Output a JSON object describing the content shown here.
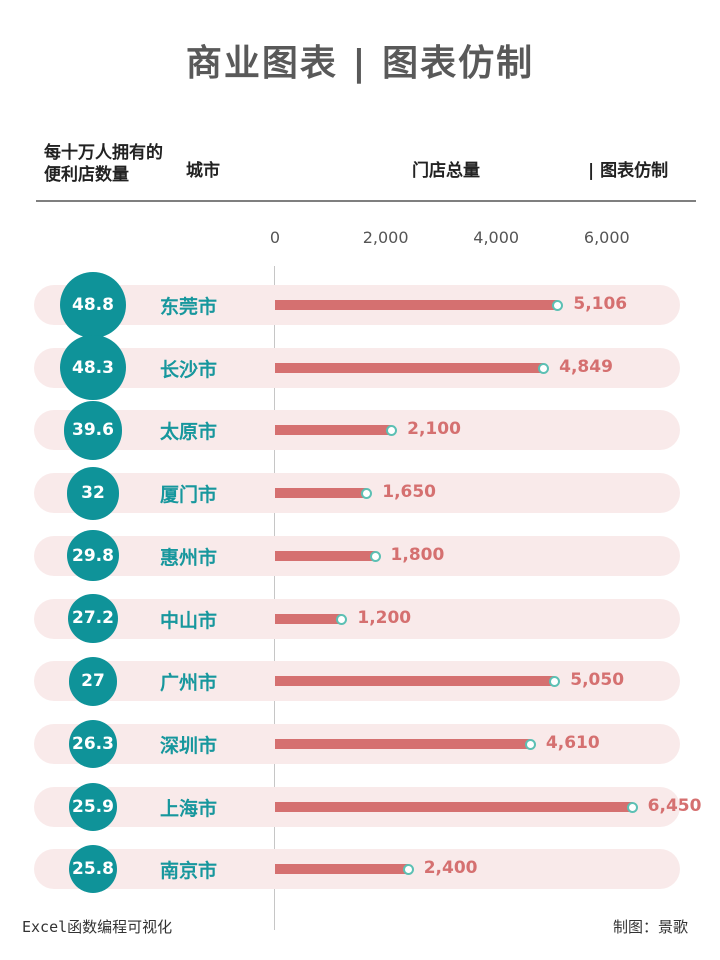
{
  "title": "商业图表 | 图表仿制",
  "header": {
    "metric_label": "每十万人拥有的便利店数量",
    "city_label": "城市",
    "stores_label": "门店总量",
    "brand_label": "| 图表仿制"
  },
  "footer": {
    "left": "Excel函数编程可视化",
    "right": "制图：景歌"
  },
  "colors": {
    "circle": "#0f9399",
    "city_text": "#17979d",
    "bar": "#d57070",
    "row_bg": "#f9eaea",
    "dot_border": "#5cc0b4"
  },
  "chart_data": {
    "type": "bar",
    "orientation": "horizontal",
    "categories": [
      "东莞市",
      "长沙市",
      "太原市",
      "厦门市",
      "惠州市",
      "中山市",
      "广州市",
      "深圳市",
      "上海市",
      "南京市"
    ],
    "series": [
      {
        "name": "门店总量",
        "values": [
          5106,
          4849,
          2100,
          1650,
          1800,
          1200,
          5050,
          4610,
          6450,
          2400
        ]
      },
      {
        "name": "每十万人拥有的便利店数量",
        "values": [
          48.8,
          48.3,
          39.6,
          32,
          29.8,
          27.2,
          27,
          26.3,
          25.9,
          25.8
        ]
      }
    ],
    "value_labels": [
      "5,106",
      "4,849",
      "2,100",
      "1,650",
      "1,800",
      "1,200",
      "5,050",
      "4,610",
      "6,450",
      "2,400"
    ],
    "metric_labels": [
      "48.8",
      "48.3",
      "39.6",
      "32",
      "29.8",
      "27.2",
      "27",
      "26.3",
      "25.9",
      "25.8"
    ],
    "xticks": [
      "0",
      "2,000",
      "4,000",
      "6,000"
    ],
    "xtick_values": [
      0,
      2000,
      4000,
      6000
    ],
    "xlim": [
      0,
      7000
    ],
    "grid": false
  }
}
